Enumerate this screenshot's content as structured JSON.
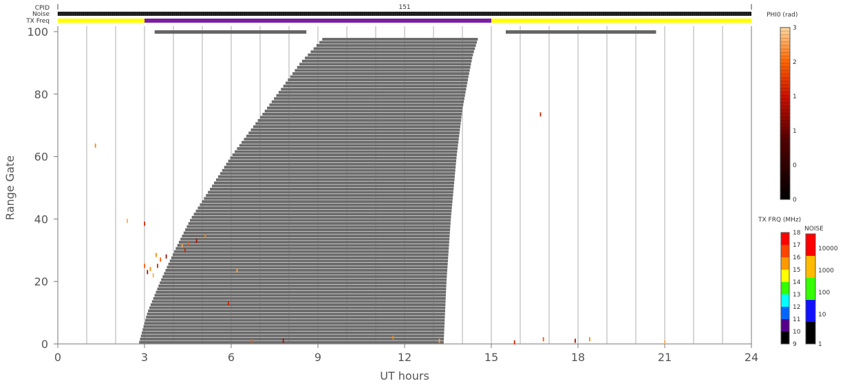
{
  "chart_data": {
    "type": "heatmap",
    "title": "",
    "xlabel": "UT hours",
    "ylabel": "Range Gate",
    "xlim": [
      0,
      24
    ],
    "ylim": [
      0,
      100
    ],
    "x_ticks": [
      0,
      3,
      6,
      9,
      12,
      15,
      18,
      21,
      24
    ],
    "y_ticks": [
      0,
      20,
      40,
      60,
      80,
      100
    ],
    "header_rows": {
      "cpid_label": "CPID",
      "noise_label": "Noise",
      "txfreq_label": "TX Freq",
      "cpid_value": "151",
      "txfreq_segments": [
        {
          "start": 0,
          "end": 3,
          "color": "#ffff00"
        },
        {
          "start": 3,
          "end": 15,
          "color": "#7a1fa2"
        },
        {
          "start": 15,
          "end": 24,
          "color": "#ffff00"
        }
      ]
    },
    "gray_top_bars": [
      {
        "start": 3.35,
        "end": 8.6
      },
      {
        "start": 15.5,
        "end": 20.7
      }
    ],
    "ground_scatter_region": {
      "color": "#6b6b6b",
      "gate_range": [
        0,
        98
      ],
      "left_edge": [
        [
          0,
          2.8
        ],
        [
          10,
          3.1
        ],
        [
          20,
          3.55
        ],
        [
          30,
          4.05
        ],
        [
          40,
          4.6
        ],
        [
          50,
          5.3
        ],
        [
          60,
          6.0
        ],
        [
          70,
          6.8
        ],
        [
          80,
          7.6
        ],
        [
          90,
          8.4
        ],
        [
          98,
          9.2
        ]
      ],
      "right_edge": [
        [
          0,
          13.35
        ],
        [
          20,
          13.45
        ],
        [
          40,
          13.6
        ],
        [
          60,
          13.8
        ],
        [
          75,
          14.0
        ],
        [
          85,
          14.2
        ],
        [
          92,
          14.35
        ],
        [
          98,
          14.55
        ]
      ]
    },
    "scatter_points": [
      {
        "x": 1.3,
        "y": 63.5
      },
      {
        "x": 2.4,
        "y": 39.4
      },
      {
        "x": 3.0,
        "y": 38.5
      },
      {
        "x": 3.0,
        "y": 25
      },
      {
        "x": 3.1,
        "y": 23
      },
      {
        "x": 3.2,
        "y": 24
      },
      {
        "x": 3.3,
        "y": 22
      },
      {
        "x": 3.45,
        "y": 25
      },
      {
        "x": 3.55,
        "y": 27
      },
      {
        "x": 3.75,
        "y": 28
      },
      {
        "x": 3.4,
        "y": 28.5
      },
      {
        "x": 4.3,
        "y": 31.5
      },
      {
        "x": 4.4,
        "y": 30
      },
      {
        "x": 4.5,
        "y": 32
      },
      {
        "x": 4.8,
        "y": 33
      },
      {
        "x": 5.1,
        "y": 34.5
      },
      {
        "x": 6.2,
        "y": 23.5
      },
      {
        "x": 5.9,
        "y": 13
      },
      {
        "x": 6.7,
        "y": 1
      },
      {
        "x": 7.8,
        "y": 1
      },
      {
        "x": 11.6,
        "y": 2
      },
      {
        "x": 13.2,
        "y": 1
      },
      {
        "x": 16.7,
        "y": 73.5
      },
      {
        "x": 16.8,
        "y": 1.5
      },
      {
        "x": 17.9,
        "y": 1
      },
      {
        "x": 18.4,
        "y": 1.5
      },
      {
        "x": 21.0,
        "y": 0.5
      },
      {
        "x": 15.8,
        "y": 0.5
      }
    ],
    "colorbars": {
      "phi0": {
        "label": "PHI0 (rad)",
        "ticks": [
          "3",
          "2",
          "1",
          "1",
          "0",
          "0"
        ]
      },
      "tx_freq": {
        "label": "TX FRQ (MHz)",
        "ticks": [
          "18",
          "17",
          "16",
          "15",
          "14",
          "13",
          "12",
          "11",
          "10",
          "9"
        ],
        "colors": [
          "#ff0000",
          "#ff4400",
          "#ff9900",
          "#ffff00",
          "#33ff00",
          "#00ffff",
          "#0066ff",
          "#550088",
          "#000000"
        ]
      },
      "noise": {
        "label": "NOISE",
        "ticks": [
          "10000",
          "1000",
          "100",
          "10",
          "1"
        ],
        "colors": [
          "#ff0000",
          "#ffbb00",
          "#33ff00",
          "#1111ff",
          "#000000"
        ]
      }
    }
  }
}
